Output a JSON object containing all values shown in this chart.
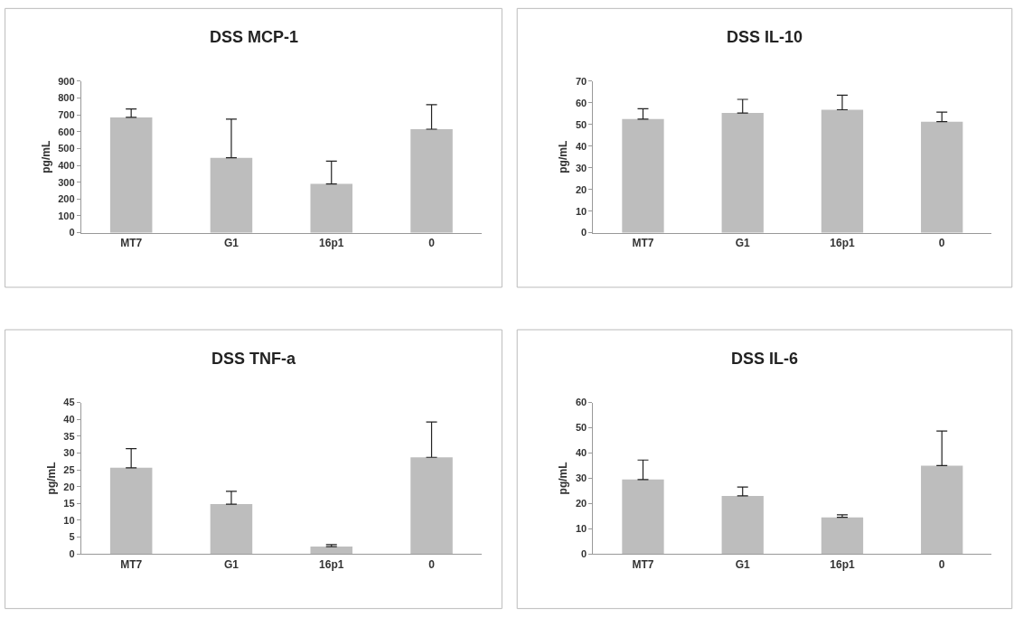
{
  "chart_data": [
    {
      "type": "bar",
      "title": "DSS MCP-1",
      "ylabel": "pg/mL",
      "categories": [
        "MT7",
        "G1",
        "16p1",
        "0"
      ],
      "values": [
        685,
        445,
        290,
        615
      ],
      "errors": [
        [
          685,
          735
        ],
        [
          445,
          675
        ],
        [
          290,
          425
        ],
        [
          615,
          760
        ]
      ],
      "color": "#bdbdbd",
      "ylim": [
        0,
        900
      ],
      "yticks": [
        0,
        100,
        200,
        300,
        400,
        500,
        600,
        700,
        800,
        900
      ]
    },
    {
      "type": "bar",
      "title": "DSS IL-10",
      "ylabel": "pg/mL",
      "categories": [
        "MT7",
        "G1",
        "16p1",
        "0"
      ],
      "values": [
        52.5,
        55.3,
        56.8,
        51.3
      ],
      "errors": [
        [
          52.5,
          57.3
        ],
        [
          55.3,
          61.6
        ],
        [
          56.8,
          63.5
        ],
        [
          51.3,
          55.7
        ]
      ],
      "color": "#bdbdbd",
      "ylim": [
        0,
        70
      ],
      "yticks": [
        0,
        10,
        20,
        30,
        40,
        50,
        60,
        70
      ]
    },
    {
      "type": "bar",
      "title": "DSS TNF-a",
      "ylabel": "pg/mL",
      "categories": [
        "MT7",
        "G1",
        "16p1",
        "0"
      ],
      "values": [
        25.6,
        14.8,
        2.2,
        28.7
      ],
      "errors": [
        [
          25.6,
          31.3
        ],
        [
          14.8,
          18.6
        ],
        [
          2.2,
          2.8
        ],
        [
          28.7,
          39.2
        ]
      ],
      "color": "#bdbdbd",
      "ylim": [
        0,
        45
      ],
      "yticks": [
        0,
        5,
        10,
        15,
        20,
        25,
        30,
        35,
        40,
        45
      ]
    },
    {
      "type": "bar",
      "title": "DSS IL-6",
      "ylabel": "pg/mL",
      "categories": [
        "MT7",
        "G1",
        "16p1",
        "0"
      ],
      "values": [
        29.5,
        23,
        14.5,
        35
      ],
      "errors": [
        [
          29.5,
          37.2
        ],
        [
          23,
          26.5
        ],
        [
          14.5,
          15.5
        ],
        [
          35,
          48.7
        ]
      ],
      "color": "#bdbdbd",
      "ylim": [
        0,
        60
      ],
      "yticks": [
        0,
        10,
        20,
        30,
        40,
        50,
        60
      ]
    }
  ]
}
